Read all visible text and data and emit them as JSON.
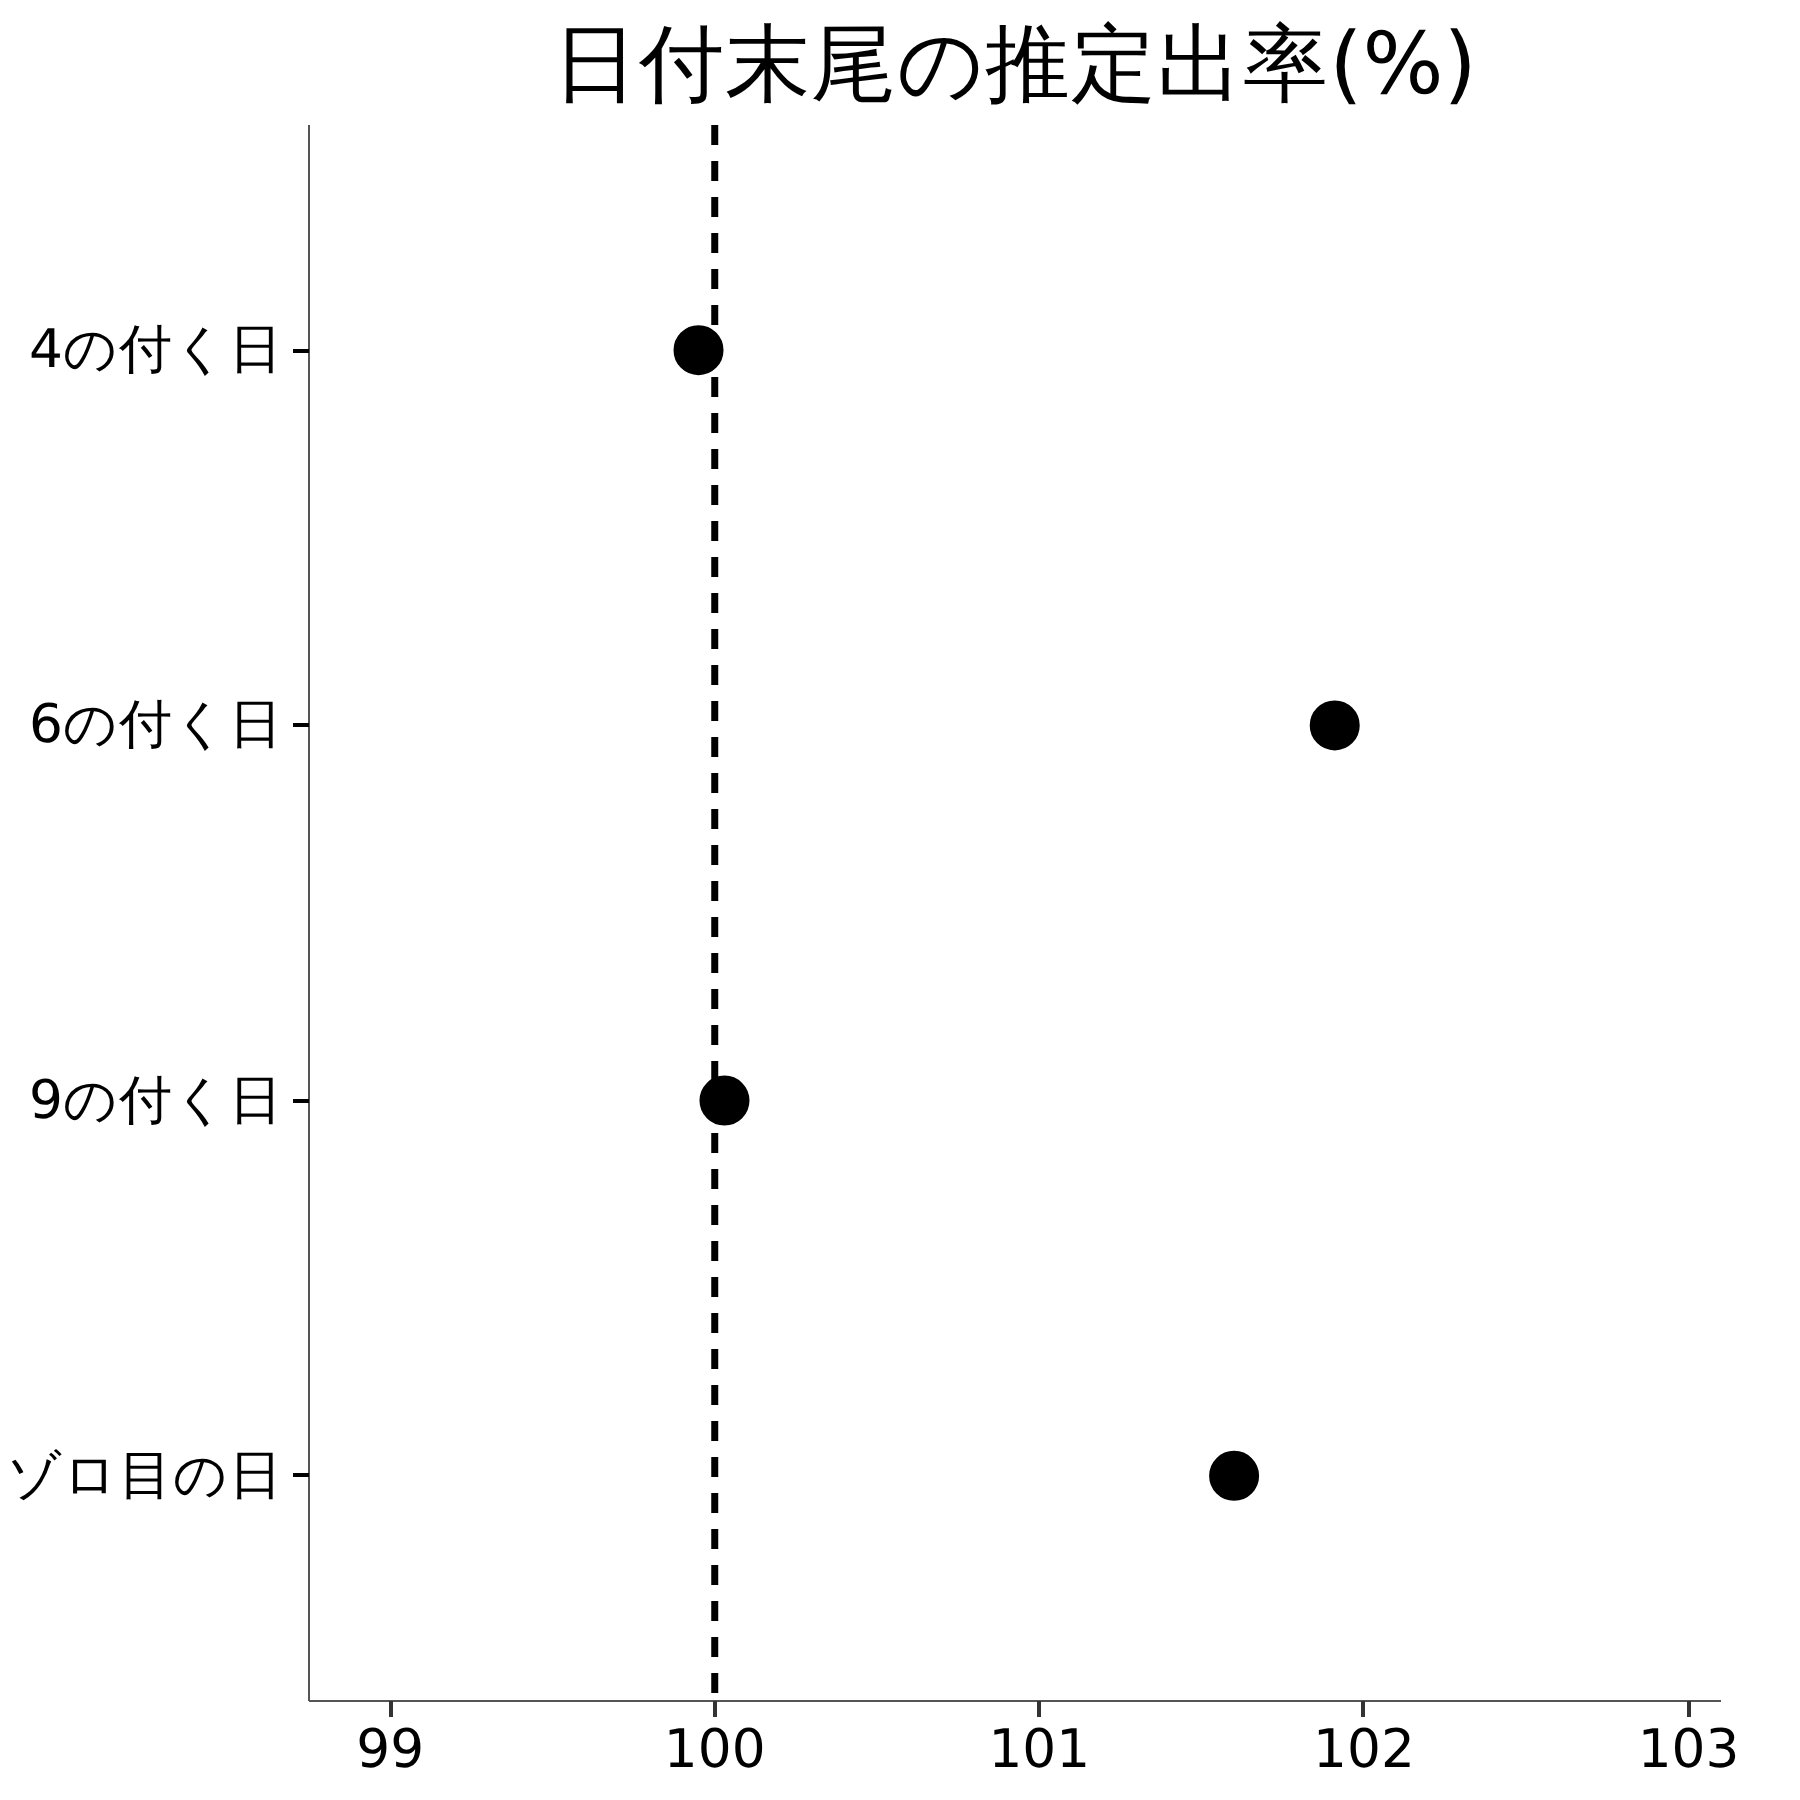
{
  "chart_data": {
    "type": "scatter",
    "title": "日付末尾の推定出率(%)",
    "orientation": "horizontal",
    "categories": [
      "4の付く日",
      "6の付く日",
      "9の付く日",
      "ゾロ目の日"
    ],
    "values": [
      99.95,
      101.91,
      100.03,
      101.6
    ],
    "color": "#000000",
    "marker": "circle",
    "grid": false,
    "xlim": [
      98.75,
      103.1
    ],
    "xticks": [
      99,
      100,
      101,
      102,
      103
    ],
    "ref_lines": [
      {
        "axis": "x",
        "value": 100,
        "line_style": "dashed",
        "color": "#000000"
      }
    ]
  }
}
